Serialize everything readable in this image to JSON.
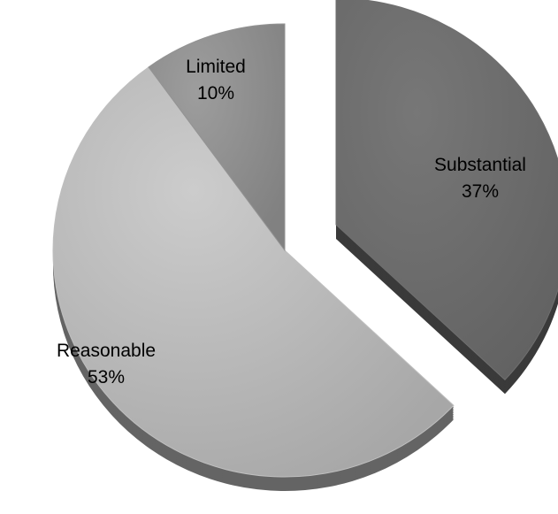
{
  "chart_data": {
    "type": "pie",
    "title": "",
    "legend": "none",
    "style": "3d exploded",
    "slices": [
      {
        "label": "Substantial",
        "value": 37,
        "value_label": "37%",
        "color": "#6a6a6a"
      },
      {
        "label": "Reasonable",
        "value": 53,
        "value_label": "53%",
        "color": "#b6b6b6"
      },
      {
        "label": "Limited",
        "value": 10,
        "value_label": "10%",
        "color": "#8c8c8c"
      }
    ]
  }
}
